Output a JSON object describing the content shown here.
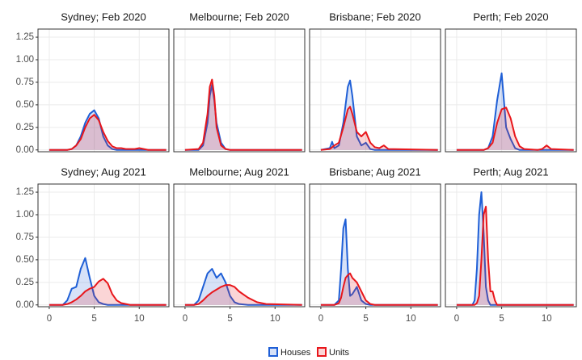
{
  "chart_data": {
    "type": "density",
    "xlim": [
      -1.25,
      13.3
    ],
    "ylim": [
      -0.02,
      1.34
    ],
    "xticks": [
      0,
      5,
      10
    ],
    "yticks": [
      {
        "value": 0,
        "label": "0.00"
      },
      {
        "value": 0.25,
        "label": "0.25"
      },
      {
        "value": 0.5,
        "label": "0.50"
      },
      {
        "value": 0.75,
        "label": "0.75"
      },
      {
        "value": 1,
        "label": "1.00"
      },
      {
        "value": 1.25,
        "label": "1.25"
      }
    ],
    "grid": true,
    "legend": "bottom",
    "series": [
      {
        "name": "Houses",
        "color": "#1f5fd6"
      },
      {
        "name": "Units",
        "color": "#e8161b"
      }
    ],
    "panels": [
      {
        "title": "Sydney; Feb 2020",
        "x": [
          0,
          2,
          2.5,
          3,
          3.5,
          4,
          4.5,
          5,
          5.5,
          6,
          6.5,
          7,
          7.5,
          8,
          8.5,
          9,
          9.5,
          10,
          10.5,
          11,
          13
        ],
        "series": [
          {
            "values": [
              0,
              0,
              0.01,
              0.05,
              0.15,
              0.3,
              0.4,
              0.44,
              0.35,
              0.15,
              0.05,
              0.01,
              0,
              0,
              0,
              0,
              0,
              0,
              0,
              0,
              0
            ]
          },
          {
            "values": [
              0,
              0,
              0.01,
              0.05,
              0.12,
              0.25,
              0.35,
              0.39,
              0.33,
              0.2,
              0.1,
              0.04,
              0.02,
              0.02,
              0.01,
              0.01,
              0.01,
              0.02,
              0.01,
              0,
              0
            ]
          }
        ]
      },
      {
        "title": "Melbourne; Feb 2020",
        "x": [
          0,
          1.5,
          2,
          2.5,
          2.75,
          3,
          3.25,
          3.5,
          4,
          4.5,
          5,
          6,
          13
        ],
        "series": [
          {
            "values": [
              0,
              0,
              0.05,
              0.3,
              0.6,
              0.72,
              0.55,
              0.3,
              0.08,
              0.01,
              0,
              0,
              0
            ]
          },
          {
            "values": [
              0,
              0.01,
              0.08,
              0.4,
              0.7,
              0.78,
              0.6,
              0.25,
              0.05,
              0.01,
              0,
              0,
              0
            ]
          }
        ]
      },
      {
        "title": "Brisbane; Feb 2020",
        "x": [
          0,
          1,
          1.25,
          1.5,
          2,
          2.5,
          3,
          3.25,
          3.5,
          4,
          4.5,
          5,
          5.5,
          6,
          6.5,
          7,
          7.5,
          13
        ],
        "series": [
          {
            "values": [
              0,
              0.02,
              0.09,
              0.02,
              0.05,
              0.3,
              0.7,
              0.77,
              0.6,
              0.15,
              0.05,
              0.08,
              0.01,
              0,
              0,
              0,
              0,
              0
            ]
          },
          {
            "values": [
              0,
              0.01,
              0.03,
              0.05,
              0.08,
              0.25,
              0.45,
              0.48,
              0.4,
              0.2,
              0.15,
              0.2,
              0.08,
              0.03,
              0.02,
              0.05,
              0.01,
              0
            ]
          }
        ]
      },
      {
        "title": "Perth; Feb 2020",
        "x": [
          0,
          3,
          3.5,
          4,
          4.5,
          5,
          5.5,
          6,
          6.5,
          7,
          7.5,
          9,
          9.5,
          10,
          10.5,
          13
        ],
        "series": [
          {
            "values": [
              0,
              0,
              0.02,
              0.15,
              0.55,
              0.85,
              0.25,
              0.12,
              0.02,
              0,
              0,
              0,
              0,
              0,
              0,
              0
            ]
          },
          {
            "values": [
              0,
              0,
              0.02,
              0.08,
              0.3,
              0.45,
              0.47,
              0.35,
              0.15,
              0.04,
              0.01,
              0,
              0.01,
              0.05,
              0.01,
              0
            ]
          }
        ]
      },
      {
        "title": "Sydney; Aug 2021",
        "x": [
          0,
          1.5,
          2,
          2.5,
          3,
          3.5,
          4,
          4.5,
          5,
          5.5,
          6,
          6.5,
          7,
          7.5,
          8,
          9,
          13
        ],
        "series": [
          {
            "values": [
              0,
              0,
              0.05,
              0.18,
              0.2,
              0.4,
              0.52,
              0.3,
              0.1,
              0.03,
              0.01,
              0,
              0,
              0,
              0,
              0,
              0
            ]
          },
          {
            "values": [
              0,
              0,
              0.01,
              0.03,
              0.06,
              0.1,
              0.15,
              0.18,
              0.2,
              0.26,
              0.29,
              0.24,
              0.12,
              0.05,
              0.02,
              0,
              0
            ]
          }
        ]
      },
      {
        "title": "Melbourne; Aug 2021",
        "x": [
          0,
          1,
          1.5,
          2,
          2.5,
          3,
          3.5,
          4,
          4.5,
          5,
          5.5,
          6,
          7,
          8,
          9,
          13
        ],
        "series": [
          {
            "values": [
              0,
              0,
              0.05,
              0.2,
              0.35,
              0.4,
              0.3,
              0.35,
              0.25,
              0.1,
              0.03,
              0.01,
              0,
              0,
              0,
              0
            ]
          },
          {
            "values": [
              0,
              0,
              0.01,
              0.05,
              0.1,
              0.14,
              0.17,
              0.2,
              0.22,
              0.22,
              0.2,
              0.15,
              0.08,
              0.03,
              0.01,
              0
            ]
          }
        ]
      },
      {
        "title": "Brisbane; Aug 2021",
        "x": [
          0,
          1.5,
          2,
          2.25,
          2.5,
          2.75,
          3,
          3.25,
          3.5,
          4,
          4.5,
          5,
          5.5,
          6,
          13
        ],
        "series": [
          {
            "values": [
              0,
              0,
              0.05,
              0.4,
              0.85,
              0.95,
              0.4,
              0.1,
              0.12,
              0.2,
              0.05,
              0.01,
              0,
              0,
              0
            ]
          },
          {
            "values": [
              0,
              0,
              0.02,
              0.08,
              0.2,
              0.3,
              0.33,
              0.35,
              0.3,
              0.25,
              0.15,
              0.05,
              0.01,
              0,
              0
            ]
          }
        ]
      },
      {
        "title": "Perth; Aug 2021",
        "x": [
          0,
          1.75,
          2,
          2.25,
          2.5,
          2.75,
          3,
          3.25,
          3.5,
          3.75,
          4,
          4.25,
          4.5,
          5,
          13
        ],
        "series": [
          {
            "values": [
              0,
              0,
              0.05,
              0.4,
              1.0,
              1.25,
              0.8,
              0.2,
              0.05,
              0,
              0,
              0,
              0,
              0,
              0
            ]
          },
          {
            "values": [
              0,
              0,
              0,
              0.02,
              0.1,
              0.5,
              1.0,
              1.09,
              0.5,
              0.15,
              0.15,
              0.05,
              0,
              0,
              0
            ]
          }
        ]
      }
    ]
  }
}
